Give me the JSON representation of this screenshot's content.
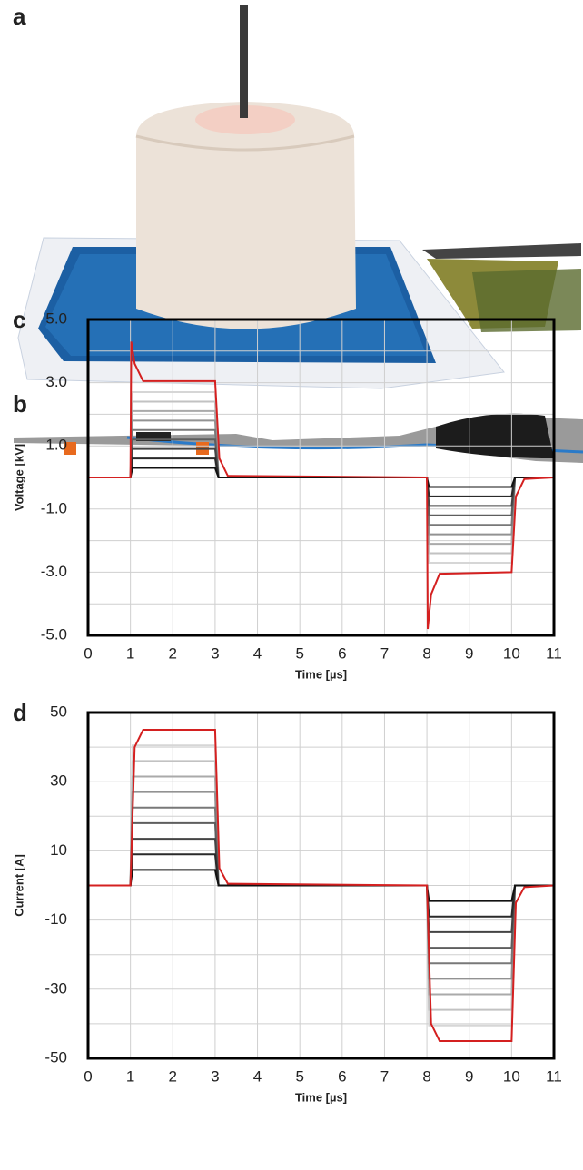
{
  "figure_labels": [
    "a",
    "b"
  ],
  "chart_data": [
    {
      "type": "line",
      "panel_label": "c",
      "y_label": "Voltage [kV]",
      "x_label": "Time [µs]",
      "xlim": [
        0,
        11
      ],
      "xticks": [
        0,
        1,
        2,
        3,
        4,
        5,
        6,
        7,
        8,
        9,
        10,
        11
      ],
      "ylim": [
        -5,
        5
      ],
      "yticks": [
        {
          "value": 5,
          "label": "5.0"
        },
        {
          "value": 3,
          "label": "3.0"
        },
        {
          "value": 1,
          "label": "1.0"
        },
        {
          "value": -1,
          "label": "-1.0"
        },
        {
          "value": -3,
          "label": "-3.0"
        },
        {
          "value": -5,
          "label": "-5.0"
        }
      ],
      "ygrid": [
        4,
        2,
        0,
        -2,
        -4
      ],
      "grid": true,
      "series": [
        {
          "color": "#d6d6d6",
          "x": [
            0,
            1,
            1.05,
            3,
            3.08,
            8,
            8.05,
            10,
            10.08,
            11
          ],
          "values": [
            0,
            0,
            2.7,
            2.7,
            0,
            0,
            -2.7,
            -2.7,
            0,
            0
          ]
        },
        {
          "color": "#c2c2c2",
          "x": [
            0,
            1,
            1.05,
            3,
            3.08,
            8,
            8.05,
            10,
            10.08,
            11
          ],
          "values": [
            0,
            0,
            2.4,
            2.4,
            0,
            0,
            -2.4,
            -2.4,
            0,
            0
          ]
        },
        {
          "color": "#aaaaaa",
          "x": [
            0,
            1,
            1.05,
            3,
            3.08,
            8,
            8.05,
            10,
            10.08,
            11
          ],
          "values": [
            0,
            0,
            2.1,
            2.1,
            0,
            0,
            -2.1,
            -2.1,
            0,
            0
          ]
        },
        {
          "color": "#929292",
          "x": [
            0,
            1,
            1.05,
            3,
            3.08,
            8,
            8.05,
            10,
            10.08,
            11
          ],
          "values": [
            0,
            0,
            1.8,
            1.8,
            0,
            0,
            -1.8,
            -1.8,
            0,
            0
          ]
        },
        {
          "color": "#787878",
          "x": [
            0,
            1,
            1.05,
            3,
            3.08,
            8,
            8.05,
            10,
            10.08,
            11
          ],
          "values": [
            0,
            0,
            1.5,
            1.5,
            0,
            0,
            -1.5,
            -1.5,
            0,
            0
          ]
        },
        {
          "color": "#5e5e5e",
          "x": [
            0,
            1,
            1.05,
            3,
            3.08,
            8,
            8.05,
            10,
            10.08,
            11
          ],
          "values": [
            0,
            0,
            1.2,
            1.2,
            0,
            0,
            -1.2,
            -1.2,
            0,
            0
          ]
        },
        {
          "color": "#444444",
          "x": [
            0,
            1,
            1.05,
            3,
            3.08,
            8,
            8.05,
            10,
            10.08,
            11
          ],
          "values": [
            0,
            0,
            0.9,
            0.9,
            0,
            0,
            -0.9,
            -0.9,
            0,
            0
          ]
        },
        {
          "color": "#2a2a2a",
          "x": [
            0,
            1,
            1.05,
            3,
            3.08,
            8,
            8.05,
            10,
            10.08,
            11
          ],
          "values": [
            0,
            0,
            0.6,
            0.6,
            0,
            0,
            -0.6,
            -0.6,
            0,
            0
          ]
        },
        {
          "color": "#111111",
          "x": [
            0,
            1,
            1.05,
            3,
            3.08,
            8,
            8.05,
            10,
            10.08,
            11
          ],
          "values": [
            0,
            0,
            0.3,
            0.3,
            0,
            0,
            -0.3,
            -0.3,
            0,
            0
          ]
        },
        {
          "color": "#d42020",
          "x": [
            0,
            1,
            1.02,
            1.1,
            1.3,
            3,
            3.1,
            3.3,
            8,
            8.02,
            8.1,
            8.3,
            10,
            10.1,
            10.3,
            11
          ],
          "values": [
            0,
            0,
            4.3,
            3.6,
            3.05,
            3.05,
            0.6,
            0.05,
            0,
            -4.8,
            -3.7,
            -3.05,
            -3,
            -0.6,
            -0.05,
            0
          ]
        }
      ]
    },
    {
      "type": "line",
      "panel_label": "d",
      "y_label": "Current [A]",
      "x_label": "Time [µs]",
      "xlim": [
        0,
        11
      ],
      "xticks": [
        0,
        1,
        2,
        3,
        4,
        5,
        6,
        7,
        8,
        9,
        10,
        11
      ],
      "ylim": [
        -50,
        50
      ],
      "yticks": [
        50,
        30,
        10,
        -10,
        -30,
        -50
      ],
      "ygrid": [
        40,
        20,
        0,
        -20,
        -40
      ],
      "grid": true,
      "series": [
        {
          "color": "#d6d6d6",
          "x": [
            0,
            1,
            1.05,
            3,
            3.08,
            8,
            8.05,
            10,
            10.08,
            11
          ],
          "values": [
            0,
            0,
            40.5,
            40.5,
            0,
            0,
            -40.5,
            -40.5,
            0,
            0
          ]
        },
        {
          "color": "#c2c2c2",
          "x": [
            0,
            1,
            1.05,
            3,
            3.08,
            8,
            8.05,
            10,
            10.08,
            11
          ],
          "values": [
            0,
            0,
            36,
            36,
            0,
            0,
            -36,
            -36,
            0,
            0
          ]
        },
        {
          "color": "#aaaaaa",
          "x": [
            0,
            1,
            1.05,
            3,
            3.08,
            8,
            8.05,
            10,
            10.08,
            11
          ],
          "values": [
            0,
            0,
            31.5,
            31.5,
            0,
            0,
            -31.5,
            -31.5,
            0,
            0
          ]
        },
        {
          "color": "#929292",
          "x": [
            0,
            1,
            1.05,
            3,
            3.08,
            8,
            8.05,
            10,
            10.08,
            11
          ],
          "values": [
            0,
            0,
            27,
            27,
            0,
            0,
            -27,
            -27,
            0,
            0
          ]
        },
        {
          "color": "#787878",
          "x": [
            0,
            1,
            1.05,
            3,
            3.08,
            8,
            8.05,
            10,
            10.08,
            11
          ],
          "values": [
            0,
            0,
            22.5,
            22.5,
            0,
            0,
            -22.5,
            -22.5,
            0,
            0
          ]
        },
        {
          "color": "#5e5e5e",
          "x": [
            0,
            1,
            1.05,
            3,
            3.08,
            8,
            8.05,
            10,
            10.08,
            11
          ],
          "values": [
            0,
            0,
            18,
            18,
            0,
            0,
            -18,
            -18,
            0,
            0
          ]
        },
        {
          "color": "#444444",
          "x": [
            0,
            1,
            1.05,
            3,
            3.08,
            8,
            8.05,
            10,
            10.08,
            11
          ],
          "values": [
            0,
            0,
            13.5,
            13.5,
            0,
            0,
            -13.5,
            -13.5,
            0,
            0
          ]
        },
        {
          "color": "#2a2a2a",
          "x": [
            0,
            1,
            1.05,
            3,
            3.08,
            8,
            8.05,
            10,
            10.08,
            11
          ],
          "values": [
            0,
            0,
            9,
            9,
            0,
            0,
            -9,
            -9,
            0,
            0
          ]
        },
        {
          "color": "#111111",
          "x": [
            0,
            1,
            1.05,
            3,
            3.08,
            8,
            8.05,
            10,
            10.08,
            11
          ],
          "values": [
            0,
            0,
            4.5,
            4.5,
            0,
            0,
            -4.5,
            -4.5,
            0,
            0
          ]
        },
        {
          "color": "#d42020",
          "x": [
            0,
            1,
            1.1,
            1.3,
            3,
            3.1,
            3.3,
            8,
            8.1,
            8.3,
            10,
            10.1,
            10.3,
            11
          ],
          "values": [
            0,
            0,
            40,
            45,
            45,
            5,
            0.5,
            0,
            -40,
            -45,
            -45,
            -5,
            -0.5,
            0
          ]
        }
      ]
    }
  ]
}
